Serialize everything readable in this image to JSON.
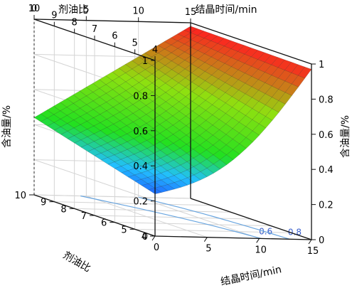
{
  "chart_data": {
    "type": "surface3d",
    "title": "",
    "zlabel": "含油量/%",
    "xlabel": "结晶时间/min",
    "ylabel": "剂油比",
    "xlim": [
      0,
      15
    ],
    "ylim": [
      4,
      10
    ],
    "zlim": [
      0,
      1
    ],
    "xticks": [
      "0",
      "5",
      "10",
      "15"
    ],
    "yticks": [
      "4",
      "5",
      "6",
      "7",
      "8",
      "9",
      "10"
    ],
    "zticks": [
      "0",
      "0.2",
      "0.4",
      "0.6",
      "0.8",
      "1"
    ],
    "top_axis": {
      "yticks": [
        "10",
        "9",
        "8",
        "7",
        "6",
        "5",
        "4"
      ],
      "xticks": [
        "0",
        "5",
        "10",
        "15"
      ]
    },
    "surface_corners": [
      {
        "x": 0,
        "y": 10,
        "z": 0.44
      },
      {
        "x": 0,
        "y": 4,
        "z": 0.24
      },
      {
        "x": 15,
        "y": 10,
        "z": 0.98
      },
      {
        "x": 15,
        "y": 4,
        "z": 0.97
      }
    ],
    "contour_levels": [
      "0.6",
      "0.8"
    ],
    "colormap": [
      "#1e3cff",
      "#22c0ff",
      "#22e020",
      "#8fe010",
      "#ff2020"
    ],
    "grid": true
  }
}
